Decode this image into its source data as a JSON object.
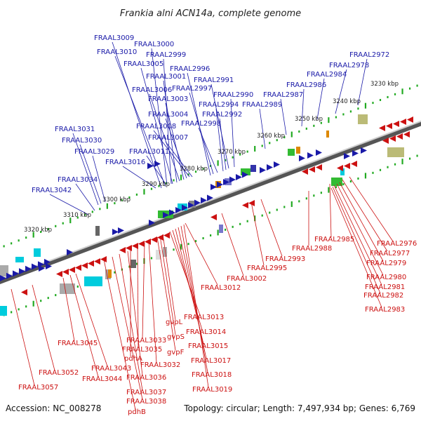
{
  "header": {
    "title": "Frankia alni ACN14a, complete genome"
  },
  "footer": {
    "accession": "Accession: NC_008278",
    "summary": "Topology: circular; Length: 7,497,934 bp; Genes: 6,769"
  },
  "colors": {
    "forward": "#1a1aa8",
    "reverse": "#cc1111",
    "axis": "#777777",
    "tick": "#22aa22"
  },
  "ticks": [
    "3230 kbp",
    "3240 kbp",
    "3250 kbp",
    "3260 kbp",
    "3270 kbp",
    "3280 kbp",
    "3290 kbp",
    "3300 kbp",
    "3310 kbp",
    "3320 kbp"
  ],
  "labels_forward": [
    "FRAAL3009",
    "FRAAL3000",
    "FRAAL3010",
    "FRAAL2999",
    "FRAAL3005",
    "FRAAL2996",
    "FRAAL3001",
    "FRAAL2991",
    "FRAAL3006",
    "FRAAL2997",
    "FRAAL3003",
    "FRAAL2994",
    "FRAAL2990",
    "FRAAL3004",
    "FRAAL2992",
    "FRAAL3008",
    "FRAAL2998",
    "FRAAL3007",
    "FRAAL3011",
    "FRAAL3016",
    "FRAAL3031",
    "FRAAL3030",
    "FRAAL3029",
    "FRAAL3034",
    "FRAAL3042",
    "FRAAL2989",
    "FRAAL2987",
    "FRAAL2986",
    "FRAAL2984",
    "FRAAL2978",
    "FRAAL2972"
  ],
  "labels_reverse": [
    "FRAAL2976",
    "FRAAL2985",
    "FRAAL2977",
    "FRAAL2988",
    "FRAAL2979",
    "FRAAL2993",
    "FRAAL2995",
    "FRAAL3002",
    "FRAAL2980",
    "FRAAL2981",
    "FRAAL2982",
    "FRAAL2983",
    "FRAAL3012",
    "FRAAL3013",
    "gvpL",
    "FRAAL3014",
    "gvpS",
    "FRAAL3015",
    "gvpF",
    "FRAAL3017",
    "FRAAL3018",
    "FRAAL3019",
    "FRAAL3033",
    "FRAAL3045",
    "FRAAL3035",
    "pdhA",
    "FRAAL3032",
    "FRAAL3043",
    "FRAAL3052",
    "FRAAL3044",
    "FRAAL3036",
    "FRAAL3057",
    "FRAAL3037",
    "FRAAL3038",
    "pdhB"
  ]
}
